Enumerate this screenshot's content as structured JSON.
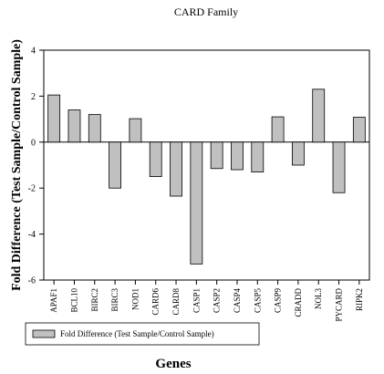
{
  "chart_data": {
    "type": "bar",
    "title": "CARD Family",
    "xlabel": "Genes",
    "ylabel": "Fold Difference (Test Sample/Control Sample)",
    "ylim": [
      -6,
      4
    ],
    "yticks": [
      4,
      2,
      0,
      -2,
      -4,
      -6
    ],
    "categories": [
      "APAF1",
      "BCL10",
      "BIRC2",
      "BIRC3",
      "NOD1",
      "CARD6",
      "CARD8",
      "CASP1",
      "CASP2",
      "CASP4",
      "CASP5",
      "CASP9",
      "CRADD",
      "NOL3",
      "PYCARD",
      "RIPK2"
    ],
    "series": [
      {
        "name": "Fold Difference (Test Sample/Control Sample)",
        "values": [
          2.05,
          1.4,
          1.2,
          -2.0,
          1.02,
          -1.5,
          -2.35,
          -5.3,
          -1.15,
          -1.2,
          -1.3,
          1.1,
          -1.0,
          2.3,
          -2.2,
          1.08
        ],
        "color": "#c0c0c0"
      }
    ],
    "grid": false,
    "legend_position": "bottom"
  }
}
